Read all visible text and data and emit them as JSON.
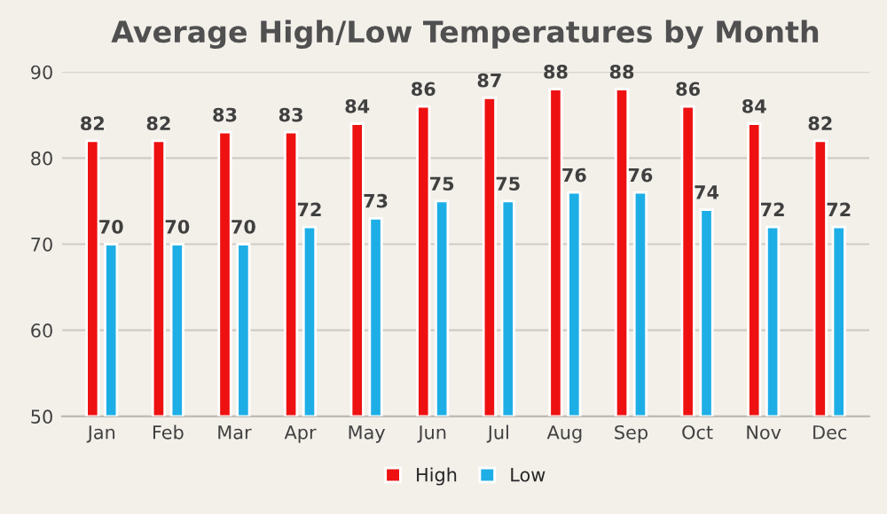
{
  "chart_data": {
    "type": "bar",
    "title": "Average High/Low Temperatures by Month",
    "categories": [
      "Jan",
      "Feb",
      "Mar",
      "Apr",
      "May",
      "Jun",
      "Jul",
      "Aug",
      "Sep",
      "Oct",
      "Nov",
      "Dec"
    ],
    "series": [
      {
        "name": "High",
        "color": "#ee1111",
        "values": [
          82,
          82,
          83,
          83,
          84,
          86,
          87,
          88,
          88,
          86,
          84,
          82
        ]
      },
      {
        "name": "Low",
        "color": "#1eaee6",
        "values": [
          70,
          70,
          70,
          72,
          73,
          75,
          75,
          76,
          76,
          74,
          72,
          72
        ]
      }
    ],
    "ylim": [
      50,
      90
    ],
    "yticks": [
      50,
      60,
      70,
      80,
      90
    ],
    "grid": "y",
    "legend": "bottom",
    "data_labels": true
  }
}
